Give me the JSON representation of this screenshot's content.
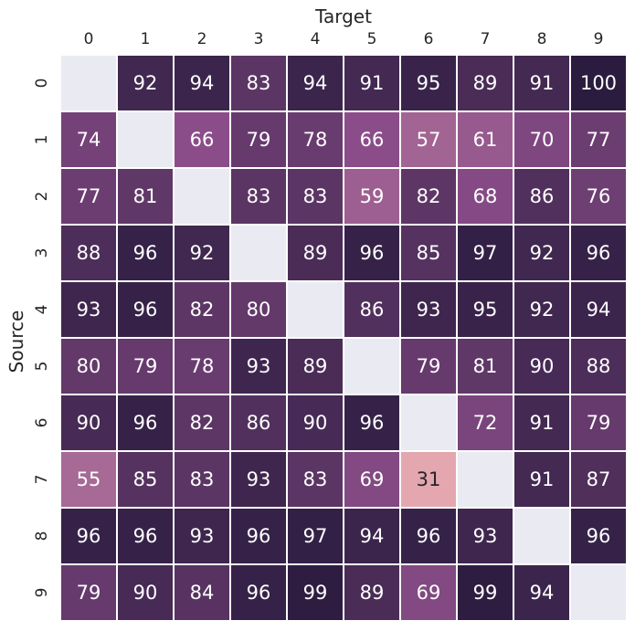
{
  "chart_data": {
    "type": "heatmap",
    "xlabel": "Target",
    "ylabel": "Source",
    "x_categories": [
      "0",
      "1",
      "2",
      "3",
      "4",
      "5",
      "6",
      "7",
      "8",
      "9"
    ],
    "y_categories": [
      "0",
      "1",
      "2",
      "3",
      "4",
      "5",
      "6",
      "7",
      "8",
      "9"
    ],
    "values": [
      [
        null,
        92,
        94,
        83,
        94,
        91,
        95,
        89,
        91,
        100
      ],
      [
        74,
        null,
        66,
        79,
        78,
        66,
        57,
        61,
        70,
        77
      ],
      [
        77,
        81,
        null,
        83,
        83,
        59,
        82,
        68,
        86,
        76
      ],
      [
        88,
        96,
        92,
        null,
        89,
        96,
        85,
        97,
        92,
        96
      ],
      [
        93,
        96,
        82,
        80,
        null,
        86,
        93,
        95,
        92,
        94
      ],
      [
        80,
        79,
        78,
        93,
        89,
        null,
        79,
        81,
        90,
        88
      ],
      [
        90,
        96,
        82,
        86,
        90,
        96,
        null,
        72,
        91,
        79
      ],
      [
        55,
        85,
        83,
        93,
        83,
        69,
        31,
        null,
        91,
        87
      ],
      [
        96,
        96,
        93,
        96,
        97,
        94,
        96,
        93,
        null,
        96
      ],
      [
        79,
        90,
        84,
        96,
        99,
        89,
        69,
        99,
        94,
        null
      ]
    ],
    "x_axis_position": "top",
    "colorbar": false,
    "colors": {
      "low": "#e4a7b0",
      "high": "#2b1c3f",
      "missing": "#eaeaf2",
      "cell_border": "#ffffff",
      "text_dark_bg": "#ffffff",
      "text_light_bg": "#262626"
    }
  }
}
